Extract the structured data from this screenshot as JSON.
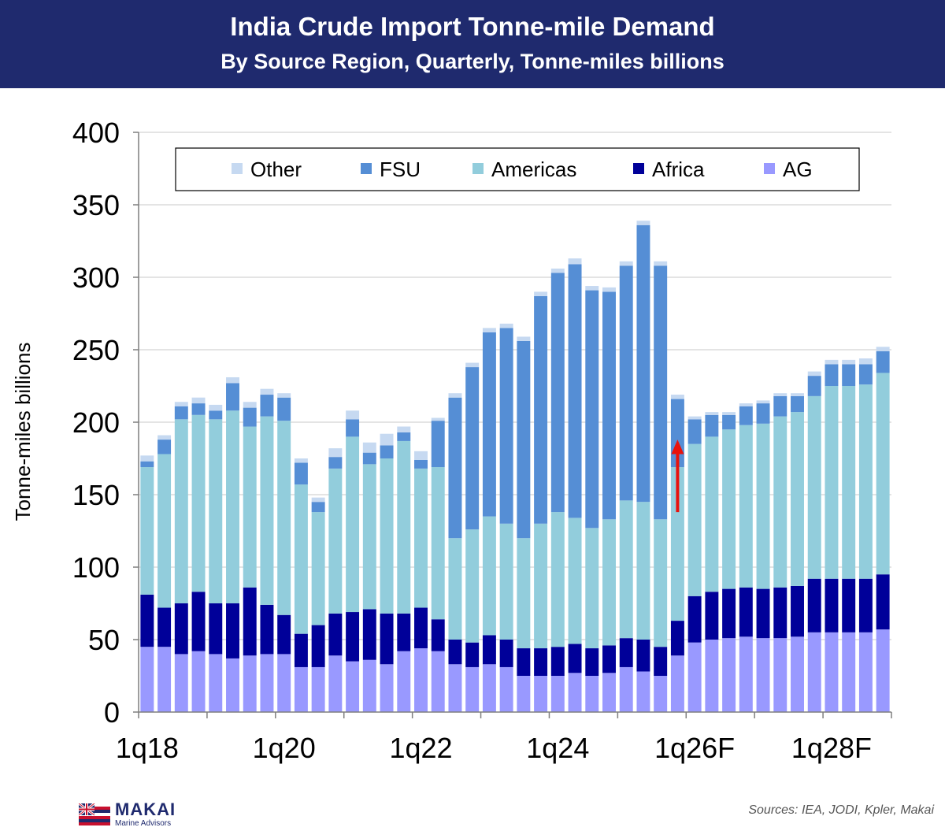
{
  "header": {
    "title": "India Crude Import Tonne-mile Demand",
    "subtitle": "By Source Region, Quarterly, Tonne-miles billions"
  },
  "chart_data": {
    "type": "bar",
    "stacked": true,
    "title": "India Crude Import Tonne-mile Demand",
    "subtitle": "By Source Region, Quarterly, Tonne-miles billions",
    "xlabel": "",
    "ylabel": "Tonne-miles billions",
    "ylim": [
      0,
      400
    ],
    "yticks": [
      0,
      50,
      100,
      150,
      200,
      250,
      300,
      350,
      400
    ],
    "grid": true,
    "legend_position": "top",
    "categories": [
      "1q18",
      "2q18",
      "3q18",
      "4q18",
      "1q19",
      "2q19",
      "3q19",
      "4q19",
      "1q20",
      "2q20",
      "3q20",
      "4q20",
      "1q21",
      "2q21",
      "3q21",
      "4q21",
      "1q22",
      "2q22",
      "3q22",
      "4q22",
      "1q23",
      "2q23",
      "3q23",
      "4q23",
      "1q24",
      "2q24",
      "3q24",
      "4q24",
      "1q25",
      "2q25",
      "3q25",
      "4q25",
      "1q26F",
      "2q26F",
      "3q26F",
      "4q26F",
      "1q27F",
      "2q27F",
      "3q27F",
      "4q27F",
      "1q28F",
      "2q28F",
      "3q28F",
      "4q28F"
    ],
    "x_tick_labels": [
      "1q18",
      "1q20",
      "1q22",
      "1q24",
      "1q26F",
      "1q28F"
    ],
    "series": [
      {
        "name": "AG",
        "color": "#9999ff",
        "values": [
          45,
          45,
          40,
          42,
          40,
          37,
          39,
          40,
          40,
          31,
          31,
          39,
          35,
          36,
          33,
          42,
          44,
          42,
          33,
          31,
          33,
          31,
          25,
          25,
          25,
          27,
          25,
          27,
          31,
          28,
          25,
          39,
          48,
          50,
          51,
          52,
          51,
          51,
          52,
          55,
          55,
          55,
          55,
          57
        ]
      },
      {
        "name": "Africa",
        "color": "#000099",
        "values": [
          36,
          27,
          35,
          41,
          35,
          38,
          47,
          34,
          27,
          23,
          29,
          29,
          34,
          35,
          35,
          26,
          28,
          22,
          17,
          17,
          20,
          19,
          19,
          19,
          20,
          20,
          19,
          19,
          20,
          22,
          20,
          24,
          32,
          33,
          34,
          34,
          34,
          35,
          35,
          37,
          37,
          37,
          37,
          38
        ]
      },
      {
        "name": "Americas",
        "color": "#92cddc",
        "values": [
          88,
          106,
          127,
          122,
          127,
          133,
          111,
          130,
          134,
          103,
          78,
          100,
          121,
          100,
          107,
          119,
          96,
          105,
          70,
          78,
          82,
          80,
          76,
          86,
          93,
          87,
          83,
          87,
          95,
          95,
          88,
          106,
          105,
          107,
          110,
          112,
          114,
          118,
          120,
          126,
          133,
          133,
          134,
          139
        ]
      },
      {
        "name": "FSU",
        "color": "#558ed5",
        "values": [
          4,
          10,
          9,
          8,
          6,
          19,
          13,
          15,
          16,
          15,
          7,
          8,
          12,
          8,
          9,
          6,
          6,
          32,
          97,
          112,
          127,
          135,
          136,
          157,
          165,
          175,
          164,
          157,
          162,
          191,
          175,
          47,
          17,
          15,
          10,
          13,
          14,
          14,
          11,
          14,
          15,
          15,
          14,
          15
        ]
      },
      {
        "name": "Other",
        "color": "#c6d9f1",
        "values": [
          4,
          3,
          3,
          4,
          4,
          4,
          4,
          4,
          3,
          3,
          3,
          6,
          6,
          7,
          8,
          4,
          6,
          2,
          3,
          3,
          3,
          3,
          3,
          3,
          3,
          4,
          3,
          3,
          3,
          3,
          3,
          3,
          2,
          2,
          2,
          2,
          2,
          2,
          2,
          3,
          3,
          3,
          4,
          3
        ]
      }
    ],
    "annotation": "red upward arrow at 4q25 from about 138 to 187"
  },
  "logo": {
    "name": "MAKAI",
    "tagline": "Marine Advisors"
  },
  "footer": {
    "sources": "Sources: IEA, JODI, Kpler, Makai"
  }
}
